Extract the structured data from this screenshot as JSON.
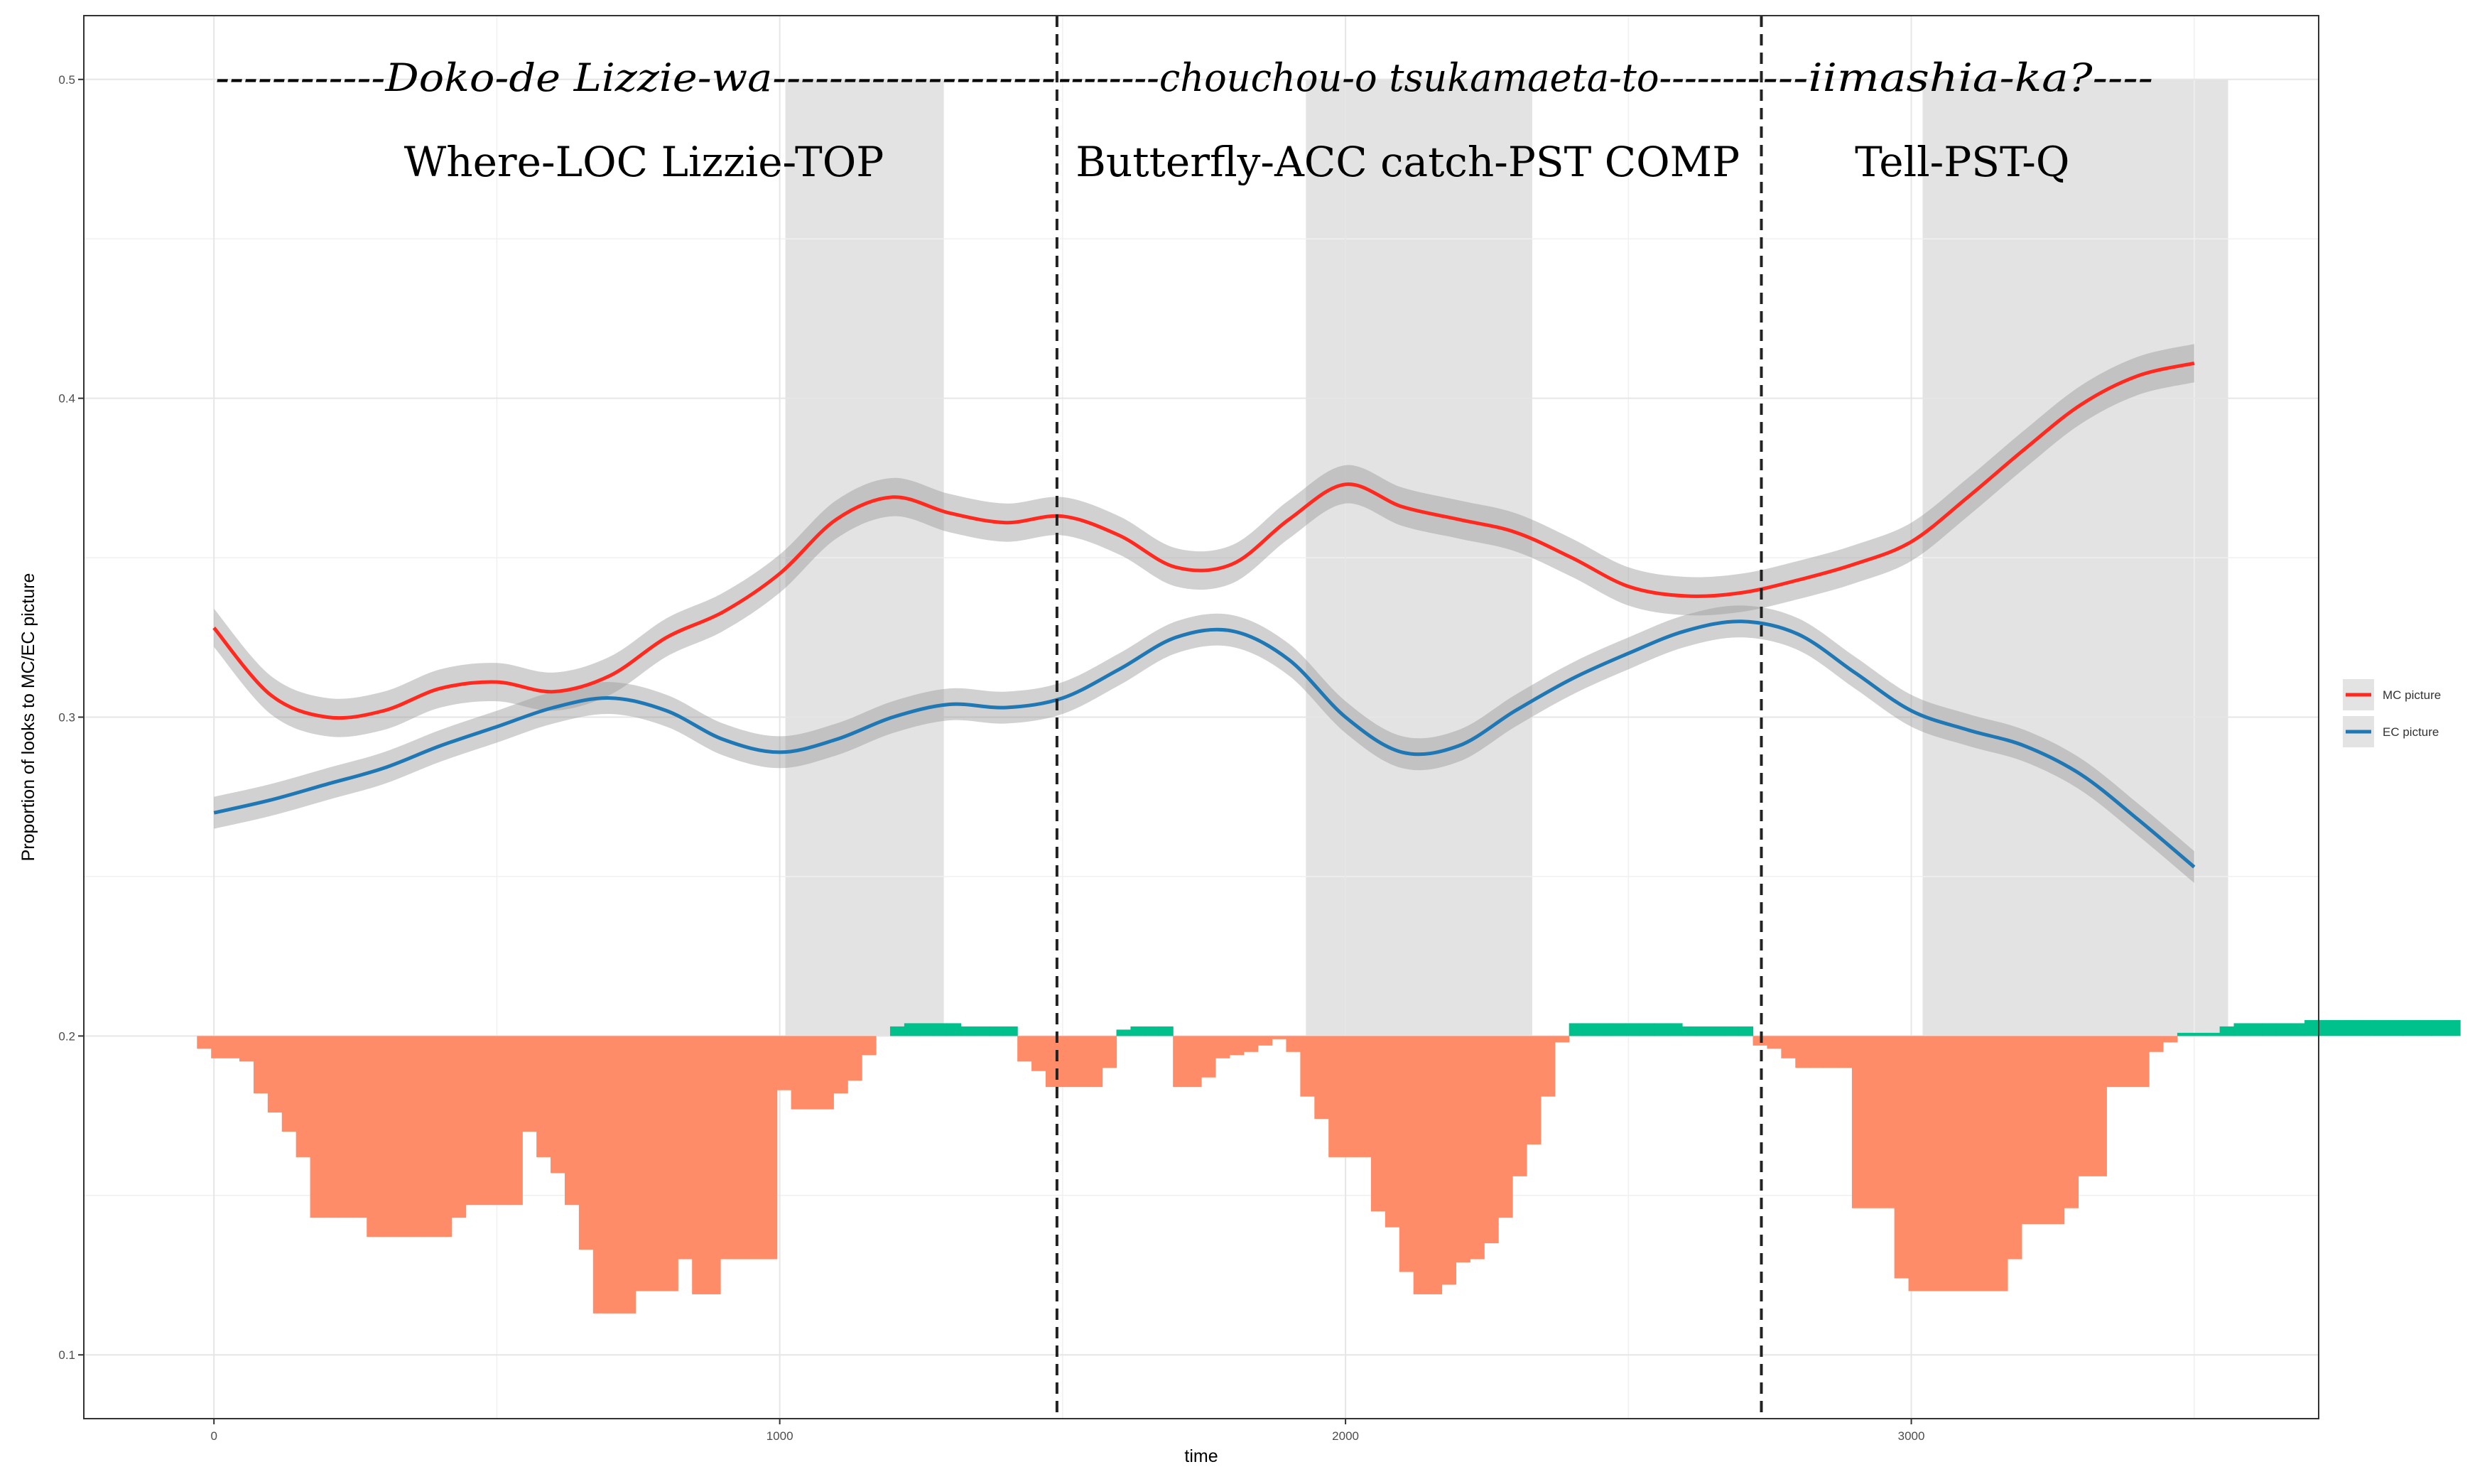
{
  "chart_data": {
    "type": "line",
    "xlabel": "time",
    "ylabel": "Proportion of looks to MC/EC picture",
    "xlim": [
      -230,
      3720
    ],
    "ylim": [
      0.08,
      0.52
    ],
    "x_ticks": [
      0,
      1000,
      2000,
      3000
    ],
    "x_tick_labels": [
      "0",
      "1000",
      "2000",
      "3000"
    ],
    "y_ticks": [
      0.1,
      0.2,
      0.3,
      0.4,
      0.5
    ],
    "y_tick_labels": [
      "0.1",
      "0.2",
      "0.3",
      "0.4",
      "0.5"
    ],
    "y_minor": [
      0.15,
      0.25,
      0.35,
      0.45
    ],
    "x_minor": [
      500,
      1500,
      2500,
      3500
    ],
    "grid": true,
    "legend": {
      "placement": "right",
      "entries": [
        {
          "label": "MC picture",
          "color": "#ff2a1f"
        },
        {
          "label": "EC picture",
          "color": "#1f77b4"
        }
      ]
    },
    "significance_windows": [
      {
        "start": 1010,
        "end": 1290
      },
      {
        "start": 1930,
        "end": 2330
      },
      {
        "start": 3020,
        "end": 3560
      }
    ],
    "boundaries": [
      1490,
      2735
    ],
    "segments": [
      {
        "japanese": "------------Doko-de Lizzie-wa--------------------",
        "gloss": "Where-LOC Lizzie-TOP",
        "x_center": 760
      },
      {
        "japanese": "--------chouchou-o tsukamaeta-to--------",
        "gloss": "Butterfly-ACC catch-PST COMP",
        "x_center": 2110
      },
      {
        "japanese": "---iimashia-ka?----",
        "gloss": "Tell-PST-Q",
        "x_center": 3090
      }
    ],
    "series": [
      {
        "name": "MC picture",
        "color": "#ff2a1f",
        "x": [
          0,
          100,
          200,
          300,
          400,
          500,
          600,
          700,
          800,
          900,
          1000,
          1100,
          1200,
          1300,
          1400,
          1500,
          1600,
          1700,
          1800,
          1900,
          2000,
          2100,
          2200,
          2300,
          2400,
          2500,
          2600,
          2700,
          2800,
          2900,
          3000,
          3100,
          3200,
          3300,
          3400,
          3500
        ],
        "values": [
          0.328,
          0.307,
          0.3,
          0.302,
          0.309,
          0.311,
          0.308,
          0.313,
          0.325,
          0.333,
          0.345,
          0.362,
          0.369,
          0.364,
          0.361,
          0.363,
          0.357,
          0.347,
          0.348,
          0.362,
          0.373,
          0.366,
          0.362,
          0.358,
          0.35,
          0.341,
          0.338,
          0.339,
          0.343,
          0.348,
          0.355,
          0.369,
          0.384,
          0.398,
          0.407,
          0.411
        ],
        "ci_halfwidth": 0.006
      },
      {
        "name": "EC picture",
        "color": "#1f77b4",
        "x": [
          0,
          100,
          200,
          300,
          400,
          500,
          600,
          700,
          800,
          900,
          1000,
          1100,
          1200,
          1300,
          1400,
          1500,
          1600,
          1700,
          1800,
          1900,
          2000,
          2100,
          2200,
          2300,
          2400,
          2500,
          2600,
          2700,
          2800,
          2900,
          3000,
          3100,
          3200,
          3300,
          3400,
          3500
        ],
        "values": [
          0.27,
          0.274,
          0.279,
          0.284,
          0.291,
          0.297,
          0.303,
          0.306,
          0.302,
          0.293,
          0.289,
          0.293,
          0.3,
          0.304,
          0.303,
          0.306,
          0.315,
          0.325,
          0.327,
          0.318,
          0.3,
          0.289,
          0.291,
          0.302,
          0.312,
          0.32,
          0.327,
          0.33,
          0.326,
          0.314,
          0.302,
          0.296,
          0.291,
          0.282,
          0.268,
          0.253
        ],
        "ci_halfwidth": 0.005
      }
    ],
    "difference_bars": {
      "baseline": 0.2,
      "bin_width": 25,
      "start": -30,
      "positive_color": "#00c08b",
      "negative_color": "#ff8c69",
      "values": [
        -0.004,
        -0.007,
        -0.007,
        -0.008,
        -0.018,
        -0.024,
        -0.03,
        -0.038,
        -0.057,
        -0.057,
        -0.057,
        -0.057,
        -0.063,
        -0.063,
        -0.063,
        -0.063,
        -0.063,
        -0.063,
        -0.057,
        -0.053,
        -0.053,
        -0.053,
        -0.053,
        -0.03,
        -0.038,
        -0.043,
        -0.053,
        -0.067,
        -0.087,
        -0.087,
        -0.087,
        -0.08,
        -0.08,
        -0.08,
        -0.07,
        -0.081,
        -0.081,
        -0.07,
        -0.07,
        -0.07,
        -0.07,
        -0.017,
        -0.023,
        -0.023,
        -0.023,
        -0.018,
        -0.014,
        -0.006,
        0.0,
        0.003,
        0.004,
        0.004,
        0.004,
        0.004,
        0.003,
        0.003,
        0.003,
        0.003,
        -0.008,
        -0.011,
        -0.016,
        -0.016,
        -0.016,
        -0.016,
        -0.01,
        0.002,
        0.003,
        0.003,
        0.003,
        -0.016,
        -0.016,
        -0.013,
        -0.007,
        -0.006,
        -0.005,
        -0.003,
        -0.001,
        -0.005,
        -0.019,
        -0.026,
        -0.038,
        -0.038,
        -0.038,
        -0.055,
        -0.06,
        -0.074,
        -0.081,
        -0.081,
        -0.078,
        -0.071,
        -0.07,
        -0.065,
        -0.057,
        -0.044,
        -0.034,
        -0.019,
        -0.002,
        0.004,
        0.004,
        0.004,
        0.004,
        0.004,
        0.004,
        0.004,
        0.004,
        0.003,
        0.003,
        0.003,
        0.003,
        0.003,
        -0.003,
        -0.004,
        -0.007,
        -0.01,
        -0.01,
        -0.01,
        -0.01,
        -0.054,
        -0.054,
        -0.054,
        -0.076,
        -0.08,
        -0.08,
        -0.08,
        -0.08,
        -0.08,
        -0.08,
        -0.08,
        -0.07,
        -0.059,
        -0.059,
        -0.059,
        -0.054,
        -0.044,
        -0.044,
        -0.016,
        -0.016,
        -0.016,
        -0.005,
        -0.002,
        0.001,
        0.001,
        0.001,
        0.003,
        0.004,
        0.004,
        0.004,
        0.004,
        0.004,
        0.005,
        0.005,
        0.005,
        0.005,
        0.005,
        0.005,
        0.005,
        0.005,
        0.005,
        0.005,
        0.005
      ]
    }
  }
}
